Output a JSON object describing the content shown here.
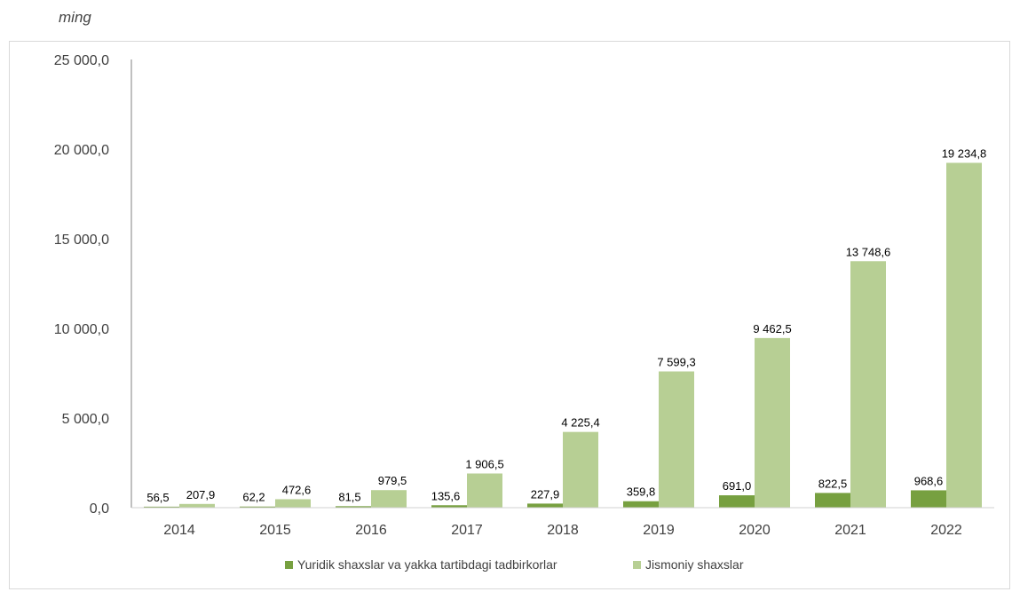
{
  "unit_label": "ming",
  "chart_data": {
    "type": "bar",
    "categories": [
      "2014",
      "2015",
      "2016",
      "2017",
      "2018",
      "2019",
      "2020",
      "2021",
      "2022"
    ],
    "series": [
      {
        "name": "Yuridik shaxslar va yakka tartibdagi tadbirkorlar",
        "color": "#77a040",
        "values": [
          56.5,
          62.2,
          81.5,
          135.6,
          227.9,
          359.8,
          691.0,
          822.5,
          968.6
        ],
        "labels": [
          "56,5",
          "62,2",
          "81,5",
          "135,6",
          "227,9",
          "359,8",
          "691,0",
          "822,5",
          "968,6"
        ]
      },
      {
        "name": "Jismoniy shaxslar",
        "color": "#b7cf94",
        "values": [
          207.9,
          472.6,
          979.5,
          1906.5,
          4225.4,
          7599.3,
          9462.5,
          13748.6,
          19234.8
        ],
        "labels": [
          "207,9",
          "472,6",
          "979,5",
          "1 906,5",
          "4 225,4",
          "7 599,3",
          "9 462,5",
          "13 748,6",
          "19 234,8"
        ]
      }
    ],
    "yticks": [
      0,
      5000,
      10000,
      15000,
      20000,
      25000
    ],
    "ytick_labels": [
      "0,0",
      "5 000,0",
      "10 000,0",
      "15 000,0",
      "20 000,0",
      "25 000,0"
    ],
    "ylim": [
      0,
      25000
    ],
    "grid": false,
    "legend_position": "bottom"
  }
}
